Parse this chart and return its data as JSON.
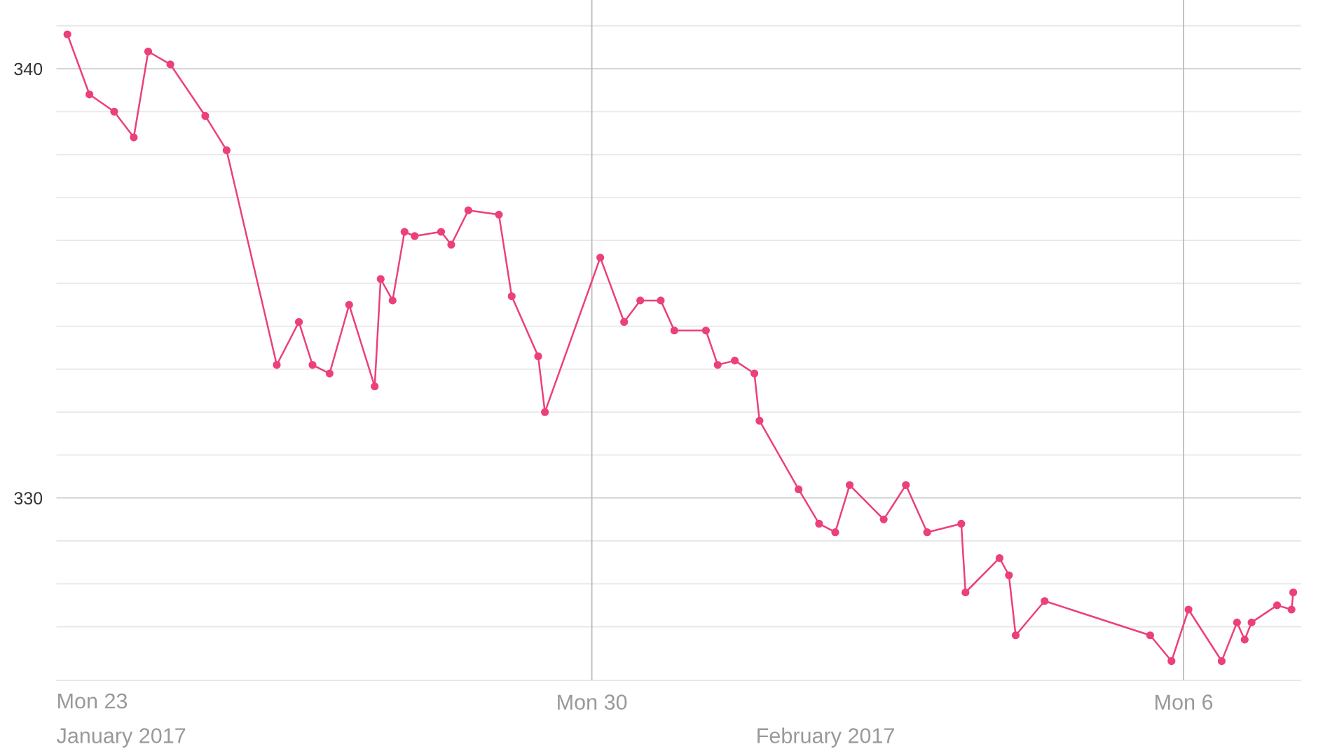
{
  "chart_data": {
    "type": "line",
    "x": [
      "2017-01-23T19:06",
      "2017-01-24T01:22",
      "2017-01-24T08:23",
      "2017-01-24T13:57",
      "2017-01-24T18:03",
      "2017-01-25T00:20",
      "2017-01-25T10:15",
      "2017-01-25T16:18",
      "2017-01-26T06:33",
      "2017-01-26T12:50",
      "2017-01-26T16:42",
      "2017-01-26T21:33",
      "2017-01-27T03:06",
      "2017-01-27T10:21",
      "2017-01-27T12:03",
      "2017-01-27T15:26",
      "2017-01-27T18:49",
      "2017-01-27T21:42",
      "2017-01-28T05:12",
      "2017-01-28T08:05",
      "2017-01-28T12:56",
      "2017-01-28T21:37",
      "2017-01-29T01:15",
      "2017-01-29T08:46",
      "2017-01-29T10:41",
      "2017-01-30T02:24",
      "2017-01-30T09:10",
      "2017-01-30T13:45",
      "2017-01-30T19:34",
      "2017-01-30T23:25",
      "2017-01-31T08:23",
      "2017-01-31T11:44",
      "2017-01-31T16:35",
      "2017-01-31T22:09",
      "2017-01-31T23:36",
      "2017-02-01T10:42",
      "2017-02-01T16:31",
      "2017-02-01T21:06",
      "2017-02-02T01:12",
      "2017-02-02T10:52",
      "2017-02-02T17:10",
      "2017-02-02T23:12",
      "2017-02-03T08:53",
      "2017-02-03T10:05",
      "2017-02-03T19:45",
      "2017-02-03T22:25",
      "2017-02-04T00:20",
      "2017-02-04T08:33",
      "2017-02-05T14:31",
      "2017-02-05T20:34",
      "2017-02-06T01:24",
      "2017-02-06T10:49",
      "2017-02-06T15:10",
      "2017-02-06T17:21",
      "2017-02-06T19:18",
      "2017-02-07T02:33",
      "2017-02-07T06:39",
      "2017-02-07T07:08"
    ],
    "series": [
      {
        "color": "#ec407a",
        "values": [
          340.8,
          339.4,
          339.0,
          338.4,
          340.4,
          340.1,
          338.9,
          338.1,
          333.1,
          334.1,
          333.1,
          332.9,
          334.5,
          332.6,
          335.1,
          334.6,
          336.2,
          336.1,
          336.2,
          335.9,
          336.7,
          336.6,
          334.7,
          333.3,
          332.0,
          335.6,
          334.1,
          334.6,
          334.6,
          333.9,
          333.9,
          333.1,
          333.2,
          332.9,
          331.8,
          330.2,
          329.4,
          329.2,
          330.3,
          329.5,
          330.3,
          329.2,
          329.4,
          327.8,
          328.6,
          328.2,
          326.8,
          327.6,
          326.8,
          326.2,
          327.4,
          326.2,
          327.1,
          326.7,
          327.1,
          327.5,
          327.4,
          327.8
        ]
      }
    ],
    "xlim": [
      "2017-01-23T16:00",
      "2017-02-07T09:20"
    ],
    "xticks": [
      {
        "value": "2017-01-30",
        "label": "Mon 30"
      },
      {
        "value": "2017-02-06",
        "label": "Mon 6"
      }
    ],
    "annotations": [
      "Mon 23",
      "January 2017",
      "February 2017"
    ],
    "ylim": [
      325.75,
      341.6
    ],
    "yticks": [
      {
        "value": 327,
        "label": null
      },
      {
        "value": 328,
        "label": null
      },
      {
        "value": 329,
        "label": null
      },
      330,
      {
        "value": 331,
        "label": null
      },
      {
        "value": 332,
        "label": null
      },
      {
        "value": 333,
        "label": null
      },
      {
        "value": 334,
        "label": null
      },
      {
        "value": 335,
        "label": null
      },
      {
        "value": 336,
        "label": null
      },
      {
        "value": 337,
        "label": null
      },
      {
        "value": 338,
        "label": null
      },
      {
        "value": 339,
        "label": null
      },
      340,
      {
        "value": 341,
        "label": null
      }
    ],
    "grid": true,
    "marker": "circle",
    "line_style": "solid"
  }
}
